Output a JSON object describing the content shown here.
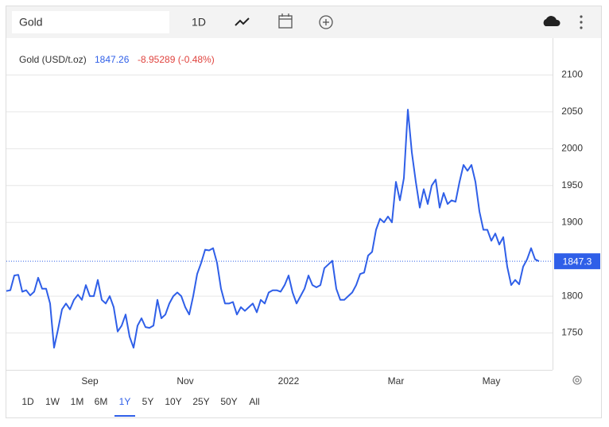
{
  "header": {
    "search": "Gold",
    "interval": "1D"
  },
  "chart_data": {
    "type": "line",
    "legend": {
      "name": "Gold (USD/t.oz)",
      "last": 1847.26,
      "change": "-8.95289 (-0.48%)"
    },
    "categories": [
      null,
      null,
      null,
      null,
      null,
      null,
      null,
      null,
      null,
      null,
      null,
      null,
      null,
      null,
      null,
      null,
      null,
      null,
      null,
      null,
      null,
      "Sep",
      null,
      null,
      null,
      null,
      null,
      null,
      null,
      null,
      null,
      null,
      null,
      null,
      null,
      null,
      null,
      null,
      null,
      null,
      null,
      null,
      null,
      null,
      null,
      "Nov",
      null,
      null,
      null,
      null,
      null,
      null,
      null,
      null,
      null,
      null,
      null,
      null,
      null,
      null,
      null,
      null,
      null,
      null,
      null,
      null,
      null,
      null,
      null,
      null,
      null,
      "2022",
      null,
      null,
      null,
      null,
      null,
      null,
      null,
      null,
      null,
      null,
      null,
      null,
      null,
      null,
      null,
      null,
      null,
      null,
      null,
      null,
      null,
      null,
      null,
      null,
      null,
      null,
      "Mar",
      null,
      null,
      null,
      null,
      null,
      null,
      null,
      null,
      null,
      null,
      null,
      null,
      null,
      null,
      null,
      null,
      null,
      null,
      null,
      null,
      null,
      null,
      null,
      "May",
      null,
      null,
      null,
      null,
      null,
      null,
      null,
      null,
      null,
      null,
      null,
      null
    ],
    "series": [
      {
        "name": "Gold",
        "color": "#2f5fe8",
        "values": [
          1807,
          1808,
          1828,
          1829,
          1806,
          1808,
          1801,
          1806,
          1825,
          1810,
          1810,
          1790,
          1730,
          1755,
          1782,
          1790,
          1782,
          1795,
          1802,
          1795,
          1815,
          1800,
          1800,
          1822,
          1795,
          1790,
          1800,
          1785,
          1752,
          1760,
          1775,
          1745,
          1730,
          1760,
          1770,
          1758,
          1757,
          1760,
          1795,
          1770,
          1775,
          1790,
          1800,
          1805,
          1800,
          1785,
          1775,
          1800,
          1830,
          1845,
          1863,
          1862,
          1865,
          1845,
          1810,
          1790,
          1790,
          1792,
          1775,
          1785,
          1780,
          1785,
          1790,
          1778,
          1795,
          1790,
          1805,
          1808,
          1808,
          1806,
          1815,
          1828,
          1805,
          1790,
          1800,
          1810,
          1828,
          1815,
          1812,
          1815,
          1838,
          1843,
          1848,
          1810,
          1795,
          1795,
          1800,
          1805,
          1815,
          1830,
          1832,
          1855,
          1860,
          1890,
          1905,
          1900,
          1908,
          1900,
          1955,
          1930,
          1960,
          2053,
          1995,
          1955,
          1920,
          1945,
          1925,
          1950,
          1958,
          1920,
          1940,
          1925,
          1930,
          1928,
          1955,
          1978,
          1970,
          1978,
          1955,
          1915,
          1890,
          1890,
          1875,
          1885,
          1870,
          1880,
          1840,
          1815,
          1822,
          1816,
          1840,
          1850,
          1865,
          1850,
          1847.26
        ]
      }
    ],
    "ylim": [
      1700,
      2150
    ],
    "yticks": [
      1750,
      1800,
      1900,
      1950,
      2000,
      2050,
      2100
    ],
    "last_value_tag": 1847.3,
    "grid": true
  },
  "ranges": {
    "items": [
      "1D",
      "1W",
      "1M",
      "6M",
      "1Y",
      "5Y",
      "10Y",
      "25Y",
      "50Y",
      "All"
    ],
    "active": "1Y"
  }
}
